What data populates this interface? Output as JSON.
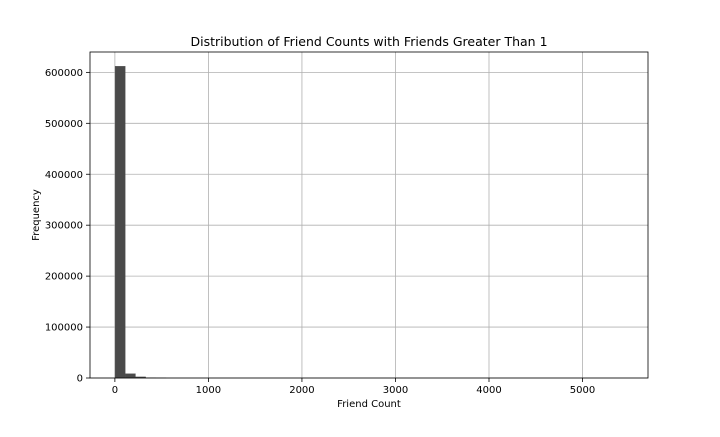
{
  "chart_data": {
    "type": "bar",
    "title": "Distribution of Friend Counts with Friends Greater Than 1",
    "xlabel": "Friend Count",
    "ylabel": "Frequency",
    "xlim": [
      -266,
      5700
    ],
    "ylim": [
      0,
      640000
    ],
    "xticks": [
      0,
      1000,
      2000,
      3000,
      4000,
      5000
    ],
    "yticks": [
      0,
      100000,
      200000,
      300000,
      400000,
      500000,
      600000
    ],
    "grid": true,
    "bar_color": "#4a4a4a",
    "bin_width": 109,
    "bins": [
      {
        "start": 2,
        "count": 612000
      },
      {
        "start": 111,
        "count": 8500
      },
      {
        "start": 220,
        "count": 2200
      },
      {
        "start": 329,
        "count": 600
      },
      {
        "start": 438,
        "count": 200
      }
    ]
  }
}
